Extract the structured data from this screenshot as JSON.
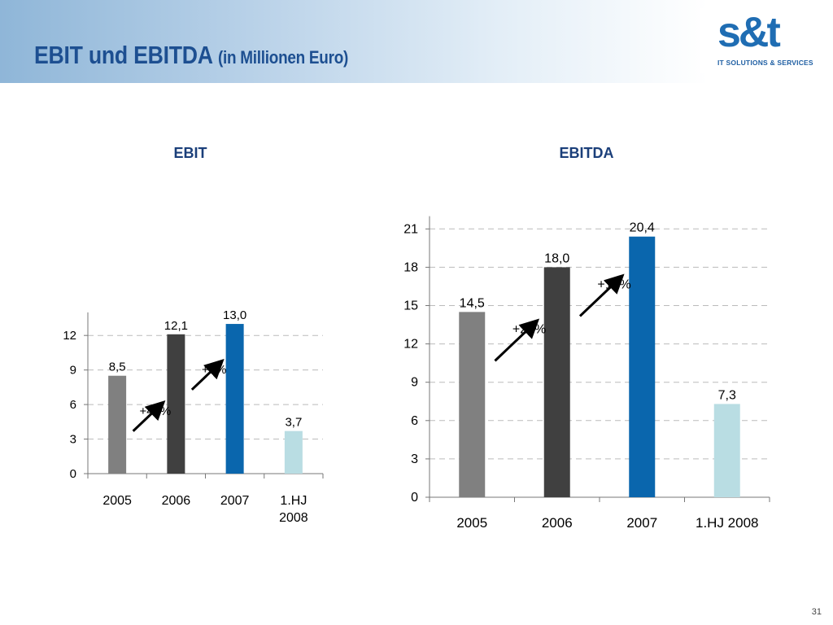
{
  "title": {
    "main": "EBIT und EBITDA",
    "sub": "(in Millionen Euro)"
  },
  "logo": {
    "mark": "s&t",
    "tagline": "IT SOLUTIONS & SERVICES"
  },
  "page_number": "31",
  "colors": {
    "2005": "#808080",
    "2006": "#404040",
    "2007": "#0a66ad",
    "1.HJ 2008": "#b9dde3",
    "grid": "#bbbbbb",
    "title": "#1d4f91"
  },
  "chart_data": [
    {
      "type": "bar",
      "title": "EBIT",
      "categories": [
        "2005",
        "2006",
        "2007",
        "1.HJ 2008"
      ],
      "values": [
        8.5,
        12.1,
        13.0,
        3.7
      ],
      "value_labels": [
        "8,5",
        "12,1",
        "13,0",
        "3,7"
      ],
      "yticks": [
        0,
        3,
        6,
        9,
        12
      ],
      "ylim": [
        0,
        14
      ],
      "grid": true,
      "annotations": [
        {
          "text": "+42%",
          "from": "2005",
          "to": "2006"
        },
        {
          "text": "+7%",
          "from": "2006",
          "to": "2007"
        }
      ]
    },
    {
      "type": "bar",
      "title": "EBITDA",
      "categories": [
        "2005",
        "2006",
        "2007",
        "1.HJ 2008"
      ],
      "values": [
        14.5,
        18.0,
        20.4,
        7.3
      ],
      "value_labels": [
        "14,5",
        "18,0",
        "20,4",
        "7,3"
      ],
      "yticks": [
        0,
        3,
        6,
        9,
        12,
        15,
        18,
        21
      ],
      "ylim": [
        0,
        22
      ],
      "grid": true,
      "annotations": [
        {
          "text": "+24%",
          "from": "2005",
          "to": "2006"
        },
        {
          "text": "+13%",
          "from": "2006",
          "to": "2007"
        }
      ]
    }
  ]
}
